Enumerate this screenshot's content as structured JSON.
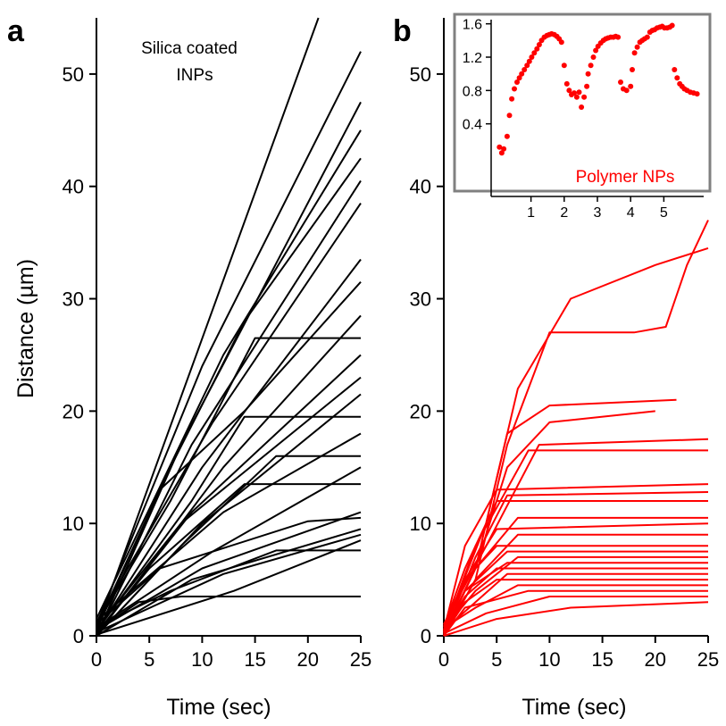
{
  "figure": {
    "panel_a_letter": "a",
    "panel_b_letter": "b"
  },
  "colors": {
    "panel_a_series": "#000000",
    "panel_b_series": "#ff0000",
    "inset_frame": "#808080",
    "axis": "#000000"
  },
  "chart_data": [
    {
      "type": "line",
      "panel": "a",
      "title": "",
      "annotation": [
        "Silica coated",
        "INPs"
      ],
      "xlabel": "Time (sec)",
      "ylabel": "Distance (µm)",
      "xlim": [
        0,
        25
      ],
      "ylim": [
        0,
        55
      ],
      "x_ticks": [
        0,
        5,
        10,
        15,
        20,
        25
      ],
      "y_ticks": [
        0,
        10,
        20,
        30,
        40,
        50
      ],
      "grid": false,
      "series": [
        {
          "x": [
            0,
            21
          ],
          "y": [
            0.5,
            55
          ]
        },
        {
          "x": [
            0,
            10,
            25
          ],
          "y": [
            1,
            24,
            52
          ]
        },
        {
          "x": [
            0,
            8,
            25
          ],
          "y": [
            0,
            17,
            47.5
          ]
        },
        {
          "x": [
            0,
            12,
            25
          ],
          "y": [
            1.5,
            25,
            45
          ]
        },
        {
          "x": [
            0,
            7,
            14,
            25
          ],
          "y": [
            0.8,
            15,
            28,
            42.5
          ]
        },
        {
          "x": [
            0,
            9,
            25
          ],
          "y": [
            0,
            17,
            40.5
          ]
        },
        {
          "x": [
            0,
            11,
            25
          ],
          "y": [
            1.2,
            19,
            38.5
          ]
        },
        {
          "x": [
            0,
            10,
            25
          ],
          "y": [
            0.3,
            15,
            33.5
          ]
        },
        {
          "x": [
            0,
            6,
            14,
            25
          ],
          "y": [
            0.5,
            13,
            20,
            31.5
          ]
        },
        {
          "x": [
            0,
            12,
            25
          ],
          "y": [
            0,
            15,
            28.5
          ]
        },
        {
          "x": [
            0,
            7,
            15,
            25
          ],
          "y": [
            1,
            12,
            26.5,
            26.5
          ]
        },
        {
          "x": [
            0,
            9,
            25
          ],
          "y": [
            0.2,
            11,
            25
          ]
        },
        {
          "x": [
            0,
            8,
            25
          ],
          "y": [
            0.6,
            10,
            23
          ]
        },
        {
          "x": [
            0,
            10,
            25
          ],
          "y": [
            0,
            10,
            21.5
          ]
        },
        {
          "x": [
            0,
            9,
            14,
            25
          ],
          "y": [
            0.4,
            12,
            19.5,
            19.5
          ]
        },
        {
          "x": [
            0,
            12,
            25
          ],
          "y": [
            1.3,
            11,
            18
          ]
        },
        {
          "x": [
            0,
            8,
            17,
            25
          ],
          "y": [
            0,
            8,
            16,
            16
          ]
        },
        {
          "x": [
            0,
            11,
            25
          ],
          "y": [
            0.7,
            7.5,
            15
          ]
        },
        {
          "x": [
            0,
            5,
            14,
            25
          ],
          "y": [
            0.2,
            6,
            13.5,
            13.5
          ]
        },
        {
          "x": [
            0,
            10,
            25
          ],
          "y": [
            0.5,
            6,
            11
          ]
        },
        {
          "x": [
            0,
            6,
            20,
            25
          ],
          "y": [
            1,
            6,
            10.2,
            10.5
          ]
        },
        {
          "x": [
            0,
            9,
            25
          ],
          "y": [
            0,
            5,
            9.5
          ]
        },
        {
          "x": [
            0,
            12,
            25
          ],
          "y": [
            0.3,
            5.5,
            9
          ]
        },
        {
          "x": [
            0,
            7,
            17,
            25
          ],
          "y": [
            0.8,
            4,
            7.6,
            7.6
          ]
        },
        {
          "x": [
            0,
            13,
            25
          ],
          "y": [
            0.1,
            4,
            8.5
          ]
        },
        {
          "x": [
            0,
            4,
            8,
            25
          ],
          "y": [
            0.5,
            3,
            3.5,
            3.5
          ]
        }
      ]
    },
    {
      "type": "line",
      "panel": "b",
      "title": "",
      "xlabel": "Time (sec)",
      "ylabel": "",
      "xlim": [
        0,
        25
      ],
      "ylim": [
        0,
        55
      ],
      "x_ticks": [
        0,
        5,
        10,
        15,
        20,
        25
      ],
      "y_ticks": [
        0,
        10,
        20,
        30,
        40,
        50
      ],
      "grid": false,
      "series": [
        {
          "x": [
            0,
            3,
            6,
            10,
            18,
            21,
            23,
            25
          ],
          "y": [
            0,
            5,
            17,
            27,
            27,
            27.5,
            33,
            37
          ]
        },
        {
          "x": [
            0,
            4,
            7,
            12,
            20,
            25
          ],
          "y": [
            0.5,
            10,
            22,
            30,
            33,
            34.5
          ]
        },
        {
          "x": [
            0,
            3,
            6,
            10,
            22
          ],
          "y": [
            0.2,
            6,
            18,
            20.5,
            21
          ]
        },
        {
          "x": [
            0,
            3,
            6,
            10,
            20
          ],
          "y": [
            0,
            6,
            15,
            19,
            20
          ]
        },
        {
          "x": [
            0,
            4,
            9,
            25
          ],
          "y": [
            1,
            8,
            17,
            17.5
          ]
        },
        {
          "x": [
            0,
            3,
            8,
            25
          ],
          "y": [
            0.3,
            8,
            16.5,
            16.5
          ]
        },
        {
          "x": [
            0,
            2,
            5,
            25
          ],
          "y": [
            0.5,
            8,
            13,
            13.5
          ]
        },
        {
          "x": [
            0,
            3,
            6,
            25
          ],
          "y": [
            0,
            7,
            12.5,
            12.8
          ]
        },
        {
          "x": [
            0,
            2,
            5,
            25
          ],
          "y": [
            0.8,
            6,
            12,
            12
          ]
        },
        {
          "x": [
            0,
            3,
            7,
            25
          ],
          "y": [
            0.2,
            6,
            10.5,
            10.5
          ]
        },
        {
          "x": [
            0,
            2,
            5,
            25
          ],
          "y": [
            0.4,
            5,
            9.5,
            10
          ]
        },
        {
          "x": [
            0,
            3,
            7,
            25
          ],
          "y": [
            0,
            5,
            9,
            9
          ]
        },
        {
          "x": [
            0,
            2,
            5,
            25
          ],
          "y": [
            1,
            5,
            8,
            8
          ]
        },
        {
          "x": [
            0,
            2,
            6,
            25
          ],
          "y": [
            0.2,
            4,
            7.5,
            7.5
          ]
        },
        {
          "x": [
            0,
            3,
            7,
            25
          ],
          "y": [
            0.6,
            4,
            7,
            7
          ]
        },
        {
          "x": [
            0,
            2,
            6,
            25
          ],
          "y": [
            0,
            4,
            6.5,
            6.5
          ]
        },
        {
          "x": [
            0,
            2,
            5,
            25
          ],
          "y": [
            0.3,
            3.5,
            6,
            6
          ]
        },
        {
          "x": [
            0,
            3,
            6,
            25
          ],
          "y": [
            0.5,
            3,
            5.5,
            5.5
          ]
        },
        {
          "x": [
            0,
            2,
            5,
            25
          ],
          "y": [
            0.1,
            3,
            5,
            5
          ]
        },
        {
          "x": [
            0,
            3,
            7,
            25
          ],
          "y": [
            0.7,
            2.5,
            4.5,
            4.5
          ]
        },
        {
          "x": [
            0,
            2,
            8,
            25
          ],
          "y": [
            0,
            2.5,
            4,
            4
          ]
        },
        {
          "x": [
            0,
            4,
            10,
            25
          ],
          "y": [
            0.2,
            2,
            3.5,
            3.5
          ]
        },
        {
          "x": [
            0,
            5,
            12,
            25
          ],
          "y": [
            0,
            1.5,
            2.5,
            3
          ]
        }
      ]
    },
    {
      "type": "scatter",
      "panel": "b-inset",
      "title": "",
      "annotation": "Polymer NPs",
      "xlabel": "",
      "ylabel": "",
      "xlim": [
        -0.2,
        6.2
      ],
      "ylim": [
        -0.15,
        1.65
      ],
      "x_ticks": [
        1,
        2,
        3,
        4,
        5
      ],
      "y_ticks": [
        0.4,
        0.8,
        1.2,
        1.6
      ],
      "y_tick_labels": [
        "0.4",
        "0.8",
        "1.2",
        "1.6"
      ],
      "grid": false,
      "points": {
        "x": [
          0.05,
          0.12,
          0.18,
          0.28,
          0.35,
          0.42,
          0.5,
          0.58,
          0.65,
          0.72,
          0.8,
          0.88,
          0.95,
          1.02,
          1.1,
          1.18,
          1.25,
          1.32,
          1.4,
          1.48,
          1.55,
          1.62,
          1.7,
          1.78,
          1.85,
          1.92,
          2.0,
          2.08,
          2.15,
          2.22,
          2.3,
          2.38,
          2.45,
          2.52,
          2.6,
          2.68,
          2.72,
          2.8,
          2.88,
          2.95,
          3.02,
          3.1,
          3.18,
          3.25,
          3.32,
          3.4,
          3.48,
          3.55,
          3.62,
          3.7,
          3.78,
          3.88,
          4.0,
          4.05,
          4.12,
          4.2,
          4.28,
          4.35,
          4.42,
          4.5,
          4.58,
          4.65,
          4.72,
          4.8,
          4.88,
          4.95,
          5.02,
          5.1,
          5.18,
          5.25,
          5.32,
          5.4,
          5.48,
          5.55,
          5.62,
          5.7,
          5.8,
          5.9,
          6.0
        ],
        "y": [
          0.12,
          0.05,
          0.1,
          0.25,
          0.5,
          0.7,
          0.82,
          0.9,
          0.95,
          1.0,
          1.05,
          1.1,
          1.15,
          1.2,
          1.25,
          1.3,
          1.35,
          1.4,
          1.44,
          1.46,
          1.47,
          1.48,
          1.47,
          1.45,
          1.42,
          1.38,
          1.1,
          0.88,
          0.8,
          0.75,
          0.77,
          0.72,
          0.78,
          0.6,
          0.72,
          0.85,
          1.0,
          1.1,
          1.2,
          1.28,
          1.33,
          1.37,
          1.4,
          1.42,
          1.43,
          1.44,
          1.44,
          1.45,
          1.44,
          0.9,
          0.82,
          0.8,
          0.85,
          1.05,
          1.25,
          1.32,
          1.38,
          1.4,
          1.42,
          1.44,
          1.5,
          1.52,
          1.53,
          1.55,
          1.56,
          1.57,
          1.55,
          1.55,
          1.56,
          1.58,
          1.05,
          0.95,
          0.88,
          0.85,
          0.82,
          0.8,
          0.78,
          0.77,
          0.76
        ]
      }
    }
  ]
}
